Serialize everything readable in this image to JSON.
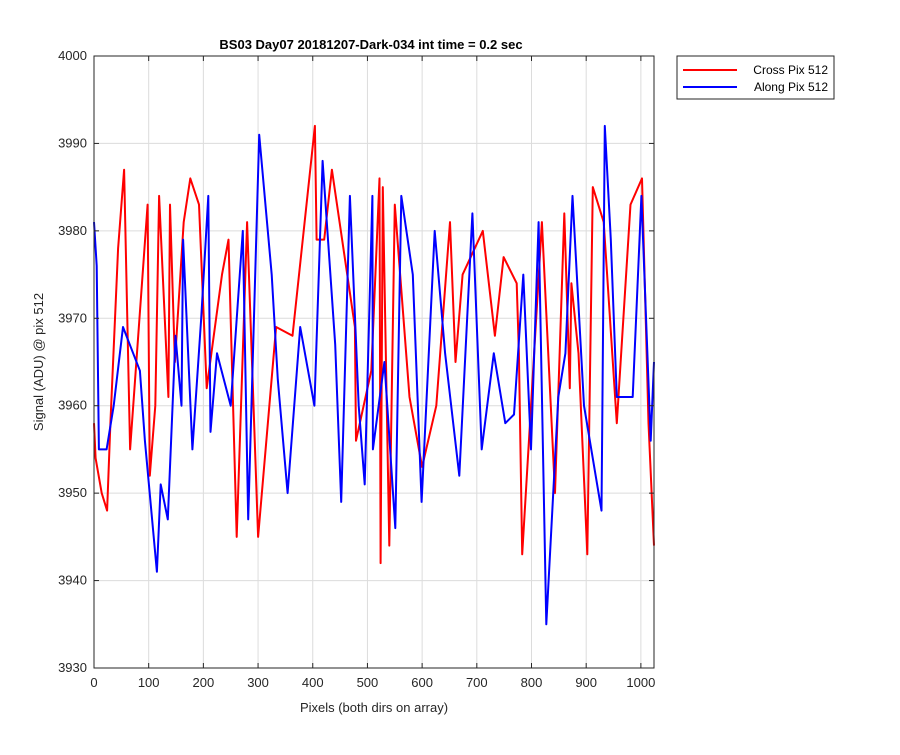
{
  "chart_data": {
    "type": "line",
    "title": "BS03 Day07 20181207-Dark-034 int time = 0.2 sec",
    "xlabel": "Pixels (both dirs on array)",
    "ylabel": "Signal (ADU) @ pix 512",
    "xlim": [
      0,
      1024
    ],
    "ylim": [
      3930,
      4000
    ],
    "xticks": [
      0,
      100,
      200,
      300,
      400,
      500,
      600,
      700,
      800,
      900,
      1000
    ],
    "yticks": [
      3930,
      3940,
      3950,
      3960,
      3970,
      3980,
      3990,
      4000
    ],
    "grid": true,
    "legend_position": "outside top-right",
    "series": [
      {
        "name": "Cross Pix 512",
        "color": "#ff0000",
        "points": [
          [
            0,
            3958
          ],
          [
            3,
            3954
          ],
          [
            14,
            3950
          ],
          [
            24,
            3948
          ],
          [
            30,
            3958
          ],
          [
            44,
            3978
          ],
          [
            55,
            3987
          ],
          [
            66,
            3955
          ],
          [
            98,
            3983
          ],
          [
            102,
            3952
          ],
          [
            112,
            3960
          ],
          [
            119,
            3984
          ],
          [
            136,
            3961
          ],
          [
            139,
            3983
          ],
          [
            148,
            3965
          ],
          [
            164,
            3981
          ],
          [
            176,
            3986
          ],
          [
            192,
            3983
          ],
          [
            206,
            3962
          ],
          [
            234,
            3975
          ],
          [
            246,
            3979
          ],
          [
            261,
            3945
          ],
          [
            280,
            3981
          ],
          [
            300,
            3945
          ],
          [
            333,
            3969
          ],
          [
            363,
            3968
          ],
          [
            404,
            3992
          ],
          [
            407,
            3979
          ],
          [
            421,
            3979
          ],
          [
            435,
            3987
          ],
          [
            477,
            3969
          ],
          [
            479,
            3956
          ],
          [
            507,
            3964
          ],
          [
            522,
            3986
          ],
          [
            524,
            3942
          ],
          [
            528,
            3985
          ],
          [
            540,
            3944
          ],
          [
            550,
            3983
          ],
          [
            577,
            3961
          ],
          [
            600,
            3953
          ],
          [
            626,
            3960
          ],
          [
            651,
            3981
          ],
          [
            661,
            3965
          ],
          [
            674,
            3975
          ],
          [
            711,
            3980
          ],
          [
            733,
            3968
          ],
          [
            749,
            3977
          ],
          [
            773,
            3974
          ],
          [
            777,
            3966
          ],
          [
            783,
            3943
          ],
          [
            819,
            3981
          ],
          [
            843,
            3950
          ],
          [
            860,
            3982
          ],
          [
            870,
            3962
          ],
          [
            873,
            3974
          ],
          [
            886,
            3966
          ],
          [
            902,
            3943
          ],
          [
            912,
            3985
          ],
          [
            932,
            3981
          ],
          [
            956,
            3958
          ],
          [
            981,
            3983
          ],
          [
            1002,
            3986
          ],
          [
            1014,
            3958
          ],
          [
            1024,
            3944
          ]
        ]
      },
      {
        "name": "Along Pix 512",
        "color": "#0000ff",
        "points": [
          [
            0,
            3981
          ],
          [
            5,
            3976
          ],
          [
            9,
            3955
          ],
          [
            23,
            3955
          ],
          [
            36,
            3960
          ],
          [
            53,
            3969
          ],
          [
            84,
            3964
          ],
          [
            93,
            3956
          ],
          [
            115,
            3941
          ],
          [
            122,
            3951
          ],
          [
            135,
            3947
          ],
          [
            149,
            3968
          ],
          [
            160,
            3960
          ],
          [
            163,
            3979
          ],
          [
            180,
            3955
          ],
          [
            196,
            3970
          ],
          [
            209,
            3984
          ],
          [
            213,
            3957
          ],
          [
            225,
            3966
          ],
          [
            250,
            3960
          ],
          [
            272,
            3980
          ],
          [
            282,
            3947
          ],
          [
            302,
            3991
          ],
          [
            325,
            3975
          ],
          [
            336,
            3963
          ],
          [
            354,
            3950
          ],
          [
            377,
            3969
          ],
          [
            403,
            3960
          ],
          [
            418,
            3988
          ],
          [
            441,
            3967
          ],
          [
            452,
            3949
          ],
          [
            468,
            3984
          ],
          [
            484,
            3960
          ],
          [
            495,
            3951
          ],
          [
            509,
            3984
          ],
          [
            510,
            3955
          ],
          [
            531,
            3965
          ],
          [
            551,
            3946
          ],
          [
            562,
            3984
          ],
          [
            583,
            3975
          ],
          [
            599,
            3949
          ],
          [
            623,
            3980
          ],
          [
            642,
            3966
          ],
          [
            668,
            3952
          ],
          [
            692,
            3982
          ],
          [
            709,
            3955
          ],
          [
            731,
            3966
          ],
          [
            752,
            3958
          ],
          [
            768,
            3959
          ],
          [
            785,
            3975
          ],
          [
            799,
            3955
          ],
          [
            813,
            3981
          ],
          [
            827,
            3935
          ],
          [
            849,
            3961
          ],
          [
            862,
            3966
          ],
          [
            875,
            3984
          ],
          [
            896,
            3960
          ],
          [
            928,
            3948
          ],
          [
            934,
            3992
          ],
          [
            945,
            3979
          ],
          [
            956,
            3961
          ],
          [
            985,
            3961
          ],
          [
            1001,
            3984
          ],
          [
            1018,
            3956
          ],
          [
            1024,
            3965
          ]
        ]
      }
    ]
  }
}
